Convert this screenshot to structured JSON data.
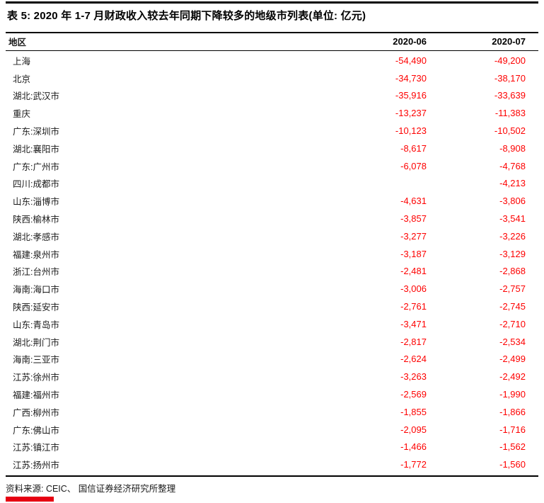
{
  "title": {
    "text": "表 5: 2020 年 1-7 月财政收入较去年同期下降较多的地级市列表(单位: 亿元)"
  },
  "table": {
    "columns": [
      "地区",
      "2020-06",
      "2020-07"
    ],
    "rows": [
      {
        "region": "上海",
        "v1": "-54,490",
        "v2": "-49,200"
      },
      {
        "region": "北京",
        "v1": "-34,730",
        "v2": "-38,170"
      },
      {
        "region": "湖北:武汉市",
        "v1": "-35,916",
        "v2": "-33,639"
      },
      {
        "region": "重庆",
        "v1": "-13,237",
        "v2": "-11,383"
      },
      {
        "region": "广东:深圳市",
        "v1": "-10,123",
        "v2": "-10,502"
      },
      {
        "region": "湖北:襄阳市",
        "v1": "-8,617",
        "v2": "-8,908"
      },
      {
        "region": "广东:广州市",
        "v1": "-6,078",
        "v2": "-4,768"
      },
      {
        "region": "四川:成都市",
        "v1": "",
        "v2": "-4,213"
      },
      {
        "region": "山东:淄博市",
        "v1": "-4,631",
        "v2": "-3,806"
      },
      {
        "region": "陕西:榆林市",
        "v1": "-3,857",
        "v2": "-3,541"
      },
      {
        "region": "湖北:孝感市",
        "v1": "-3,277",
        "v2": "-3,226"
      },
      {
        "region": "福建:泉州市",
        "v1": "-3,187",
        "v2": "-3,129"
      },
      {
        "region": "浙江:台州市",
        "v1": "-2,481",
        "v2": "-2,868"
      },
      {
        "region": "海南:海口市",
        "v1": "-3,006",
        "v2": "-2,757"
      },
      {
        "region": "陕西:延安市",
        "v1": "-2,761",
        "v2": "-2,745"
      },
      {
        "region": "山东:青岛市",
        "v1": "-3,471",
        "v2": "-2,710"
      },
      {
        "region": "湖北:荆门市",
        "v1": "-2,817",
        "v2": "-2,534"
      },
      {
        "region": "海南:三亚市",
        "v1": "-2,624",
        "v2": "-2,499"
      },
      {
        "region": "江苏:徐州市",
        "v1": "-3,263",
        "v2": "-2,492"
      },
      {
        "region": "福建:福州市",
        "v1": "-2,569",
        "v2": "-1,990"
      },
      {
        "region": "广西:柳州市",
        "v1": "-1,855",
        "v2": "-1,866"
      },
      {
        "region": "广东:佛山市",
        "v1": "-2,095",
        "v2": "-1,716"
      },
      {
        "region": "江苏:镇江市",
        "v1": "-1,466",
        "v2": "-1,562"
      },
      {
        "region": "江苏:扬州市",
        "v1": "-1,772",
        "v2": "-1,560"
      }
    ]
  },
  "footer": {
    "source": "资料来源: CEIC、 国信证券经济研究所整理"
  },
  "colors": {
    "number_red": "#fe0000",
    "brand_red": "#e60012",
    "line_black": "#000000"
  }
}
